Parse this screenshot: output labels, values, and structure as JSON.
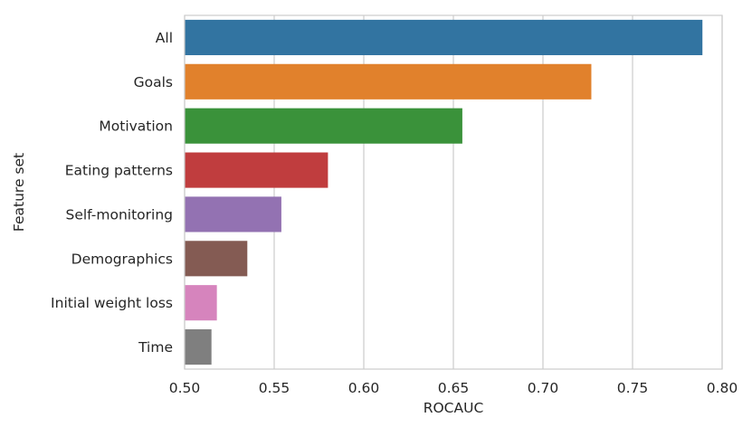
{
  "chart_data": {
    "type": "bar",
    "orientation": "horizontal",
    "categories": [
      "All",
      "Goals",
      "Motivation",
      "Eating patterns",
      "Self-monitoring",
      "Demographics",
      "Initial weight loss",
      "Time"
    ],
    "values": [
      0.789,
      0.727,
      0.655,
      0.58,
      0.554,
      0.535,
      0.518,
      0.515
    ],
    "colors": [
      "#3274a1",
      "#e1812c",
      "#3a923a",
      "#c03d3e",
      "#9372b2",
      "#845b53",
      "#d684bd",
      "#7f7f7f"
    ],
    "xlabel": "ROCAUC",
    "ylabel": "Feature set",
    "xlim": [
      0.5,
      0.8
    ],
    "xticks": [
      0.5,
      0.55,
      0.6,
      0.65,
      0.7,
      0.75,
      0.8
    ],
    "xtick_labels": [
      "0.50",
      "0.55",
      "0.60",
      "0.65",
      "0.70",
      "0.75",
      "0.80"
    ],
    "grid": "vertical",
    "legend": "none"
  }
}
